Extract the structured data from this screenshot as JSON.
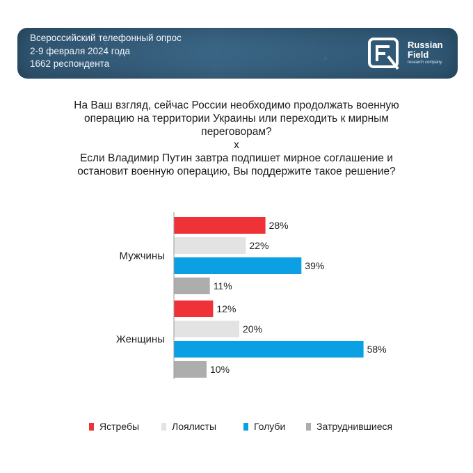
{
  "header": {
    "lines": [
      "Всероссийский телефонный опрос",
      "2-9 февраля 2024 года",
      "1662 респондента"
    ],
    "logo": {
      "name_line1": "Russian",
      "name_line2": "Field",
      "tagline": "research company"
    }
  },
  "question": {
    "lines": [
      "На Ваш взгляд, сейчас России необходимо продолжать военную",
      "операцию на территории Украины или переходить к мирным",
      "переговорам?",
      "x",
      "Если Владимир Путин завтра подпишет мирное соглашение и",
      "остановит военную операцию, Вы поддержите такое решение?"
    ]
  },
  "chart_data": {
    "type": "bar",
    "orientation": "horizontal",
    "categories": [
      "Мужчины",
      "Женщины"
    ],
    "series": [
      {
        "name": "Ястребы",
        "values": [
          28,
          12
        ],
        "color": "#ee3237"
      },
      {
        "name": "Лоялисты",
        "values": [
          22,
          20
        ],
        "color": "#e3e3e3"
      },
      {
        "name": "Голуби",
        "values": [
          39,
          58
        ],
        "color": "#0aa0e3"
      },
      {
        "name": "Затруднившиеся",
        "values": [
          11,
          10
        ],
        "color": "#adadad"
      }
    ],
    "value_suffix": "%",
    "xlim": [
      0,
      100
    ],
    "grid": false,
    "legend_position": "bottom"
  }
}
